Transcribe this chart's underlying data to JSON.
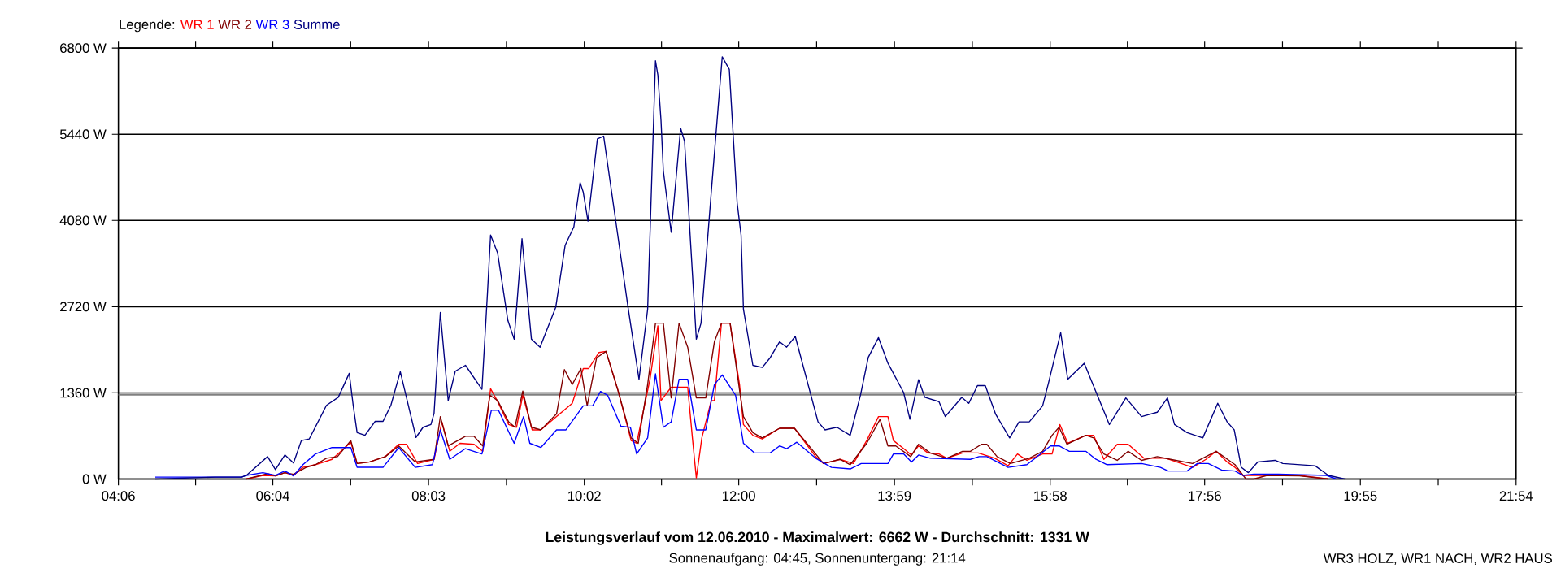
{
  "chart_data": {
    "type": "line",
    "title": "Leistungsverlauf vom 12.06.2010 - Maximalwert: 6662 W - Durchschnitt: 1331 W",
    "subtitle": "Sonnenaufgang: 04:45, Sonnenuntergang: 21:14",
    "legend_title": "Legende:",
    "legend": "top left",
    "annotations": [
      "WR3 HOLZ, WR1 NACH, WR2 HAUS"
    ],
    "xlim": [
      4.1,
      21.9
    ],
    "xticks": [
      {
        "value": 4.1,
        "label": "04:06"
      },
      {
        "value": 5.0833,
        "label": null
      },
      {
        "value": 6.0667,
        "label": "06:04"
      },
      {
        "value": 7.0583,
        "label": null
      },
      {
        "value": 8.05,
        "label": "08:03"
      },
      {
        "value": 9.0417,
        "label": null
      },
      {
        "value": 10.0333,
        "label": "10:02"
      },
      {
        "value": 11.0167,
        "label": null
      },
      {
        "value": 12.0,
        "label": "12:00"
      },
      {
        "value": 12.9917,
        "label": null
      },
      {
        "value": 13.9833,
        "label": "13:59"
      },
      {
        "value": 14.975,
        "label": null
      },
      {
        "value": 15.9667,
        "label": "15:58"
      },
      {
        "value": 16.95,
        "label": null
      },
      {
        "value": 17.9333,
        "label": "17:56"
      },
      {
        "value": 18.925,
        "label": null
      },
      {
        "value": 19.9167,
        "label": "19:55"
      },
      {
        "value": 20.9083,
        "label": null
      },
      {
        "value": 21.9,
        "label": "21:54"
      }
    ],
    "ylim": [
      0,
      6800
    ],
    "yticks": [
      {
        "value": 0,
        "label": "0 W"
      },
      {
        "value": 1360,
        "label": "1360 W"
      },
      {
        "value": 2720,
        "label": "2720 W"
      },
      {
        "value": 4080,
        "label": "4080 W"
      },
      {
        "value": 5440,
        "label": "5440 W"
      },
      {
        "value": 6800,
        "label": "6800 W"
      }
    ],
    "grid": "y",
    "marker": "none",
    "line_style": "solid",
    "ref_lines": [
      {
        "axis": "y",
        "value": 1331,
        "color": "#808080"
      }
    ],
    "series": [
      {
        "name": "WR 1",
        "color": "#ff0000",
        "x": [
          5.73,
          5.94,
          6.1,
          6.22,
          6.33,
          6.45,
          6.61,
          6.82,
          7.06,
          7.14,
          7.3,
          7.5,
          7.67,
          7.77,
          7.91,
          8.12,
          8.22,
          8.32,
          8.45,
          8.63,
          8.74,
          8.84,
          8.93,
          9.07,
          9.17,
          9.25,
          9.37,
          9.48,
          9.68,
          9.88,
          10.02,
          10.09,
          10.22,
          10.31,
          10.46,
          10.63,
          10.7,
          10.87,
          10.97,
          11.01,
          11.14,
          11.35,
          11.41,
          11.46,
          11.53,
          11.65,
          11.69,
          11.78,
          11.89,
          12.01,
          12.06,
          12.18,
          12.3,
          12.52,
          12.71,
          12.98,
          13.08,
          13.29,
          13.46,
          13.63,
          13.78,
          13.9,
          13.97,
          14.1,
          14.2,
          14.29,
          14.41,
          14.55,
          14.65,
          14.85,
          15.05,
          15.26,
          15.43,
          15.55,
          15.67,
          15.87,
          15.99,
          16.09,
          16.19,
          16.42,
          16.52,
          16.65,
          16.82,
          16.96,
          17.16,
          17.44,
          17.78,
          17.95,
          18.08,
          18.22,
          18.32,
          18.42,
          19.14,
          19.51
        ],
        "values": [
          0,
          58,
          50,
          101,
          58,
          185,
          227,
          311,
          581,
          245,
          270,
          354,
          548,
          548,
          245,
          311,
          902,
          438,
          564,
          548,
          438,
          1424,
          1222,
          860,
          817,
          1323,
          776,
          776,
          986,
          1196,
          1744,
          1744,
          1997,
          2015,
          1408,
          607,
          564,
          1575,
          2419,
          1239,
          1449,
          1449,
          649,
          18,
          649,
          1239,
          1239,
          2460,
          2460,
          1492,
          860,
          690,
          632,
          801,
          801,
          354,
          245,
          311,
          245,
          607,
          986,
          986,
          607,
          480,
          379,
          523,
          412,
          396,
          329,
          412,
          412,
          329,
          210,
          396,
          295,
          396,
          396,
          860,
          564,
          690,
          690,
          311,
          548,
          548,
          329,
          329,
          185,
          311,
          438,
          270,
          185,
          58,
          58,
          0
        ]
      },
      {
        "name": "WR 2",
        "color": "#800000",
        "x": [
          5.73,
          6.0,
          6.1,
          6.22,
          6.33,
          6.49,
          6.61,
          6.75,
          6.89,
          7.06,
          7.14,
          7.3,
          7.5,
          7.67,
          7.88,
          8.12,
          8.2,
          8.3,
          8.52,
          8.63,
          8.74,
          8.83,
          8.93,
          9.07,
          9.15,
          9.25,
          9.36,
          9.48,
          9.68,
          9.78,
          9.88,
          9.99,
          10.07,
          10.19,
          10.31,
          10.46,
          10.63,
          10.72,
          10.84,
          10.94,
          11.04,
          11.14,
          11.24,
          11.35,
          11.46,
          11.58,
          11.69,
          11.78,
          11.89,
          12.01,
          12.06,
          12.18,
          12.3,
          12.52,
          12.71,
          12.98,
          13.08,
          13.29,
          13.42,
          13.63,
          13.8,
          13.9,
          14.0,
          14.19,
          14.29,
          14.44,
          14.65,
          14.85,
          14.95,
          15.09,
          15.16,
          15.29,
          15.46,
          15.7,
          15.87,
          15.99,
          16.08,
          16.18,
          16.42,
          16.52,
          16.65,
          16.82,
          16.96,
          17.13,
          17.33,
          17.5,
          17.78,
          18.08,
          18.32,
          18.46,
          18.56,
          18.73,
          19.14,
          19.51
        ],
        "values": [
          0,
          84,
          50,
          101,
          76,
          185,
          227,
          329,
          354,
          607,
          245,
          270,
          354,
          523,
          270,
          311,
          986,
          523,
          674,
          674,
          523,
          1323,
          1239,
          902,
          817,
          1390,
          817,
          776,
          1028,
          1727,
          1492,
          1744,
          1155,
          1914,
          2015,
          1408,
          649,
          564,
          1492,
          2460,
          2460,
          1281,
          2460,
          2081,
          1281,
          1281,
          2166,
          2460,
          2460,
          1408,
          986,
          733,
          649,
          801,
          801,
          396,
          245,
          311,
          227,
          564,
          943,
          523,
          523,
          354,
          548,
          412,
          329,
          438,
          438,
          548,
          548,
          354,
          245,
          329,
          438,
          690,
          817,
          548,
          690,
          649,
          396,
          295,
          438,
          295,
          354,
          311,
          245,
          438,
          227,
          0,
          0,
          58,
          50,
          0
        ]
      },
      {
        "name": "WR 3",
        "color": "#0000ff",
        "x": [
          4.57,
          5.67,
          5.73,
          5.94,
          6.1,
          6.22,
          6.33,
          6.45,
          6.61,
          6.82,
          7.06,
          7.14,
          7.47,
          7.67,
          7.88,
          8.1,
          8.2,
          8.32,
          8.52,
          8.73,
          8.85,
          8.94,
          9.14,
          9.26,
          9.34,
          9.48,
          9.68,
          9.8,
          10.02,
          10.14,
          10.24,
          10.33,
          10.5,
          10.62,
          10.7,
          10.84,
          10.94,
          11.04,
          11.14,
          11.24,
          11.35,
          11.46,
          11.58,
          11.69,
          11.79,
          11.96,
          12.06,
          12.2,
          12.4,
          12.52,
          12.61,
          12.74,
          12.98,
          13.18,
          13.42,
          13.56,
          13.9,
          13.97,
          14.1,
          14.2,
          14.29,
          14.44,
          14.95,
          15.06,
          15.16,
          15.43,
          15.67,
          15.97,
          16.08,
          16.21,
          16.42,
          16.55,
          16.69,
          17.13,
          17.37,
          17.47,
          17.71,
          17.84,
          17.98,
          18.15,
          18.32,
          18.42,
          18.56,
          18.87,
          19.48,
          19.61
        ],
        "values": [
          30,
          30,
          58,
          101,
          58,
          126,
          50,
          227,
          396,
          497,
          497,
          185,
          185,
          497,
          185,
          227,
          776,
          311,
          480,
          396,
          1087,
          1087,
          564,
          986,
          564,
          497,
          776,
          776,
          1155,
          1155,
          1382,
          1323,
          834,
          817,
          396,
          649,
          1660,
          817,
          902,
          1575,
          1575,
          776,
          776,
          1492,
          1643,
          1323,
          564,
          412,
          412,
          523,
          480,
          581,
          329,
          185,
          160,
          245,
          245,
          396,
          396,
          270,
          379,
          329,
          311,
          354,
          354,
          185,
          227,
          523,
          523,
          438,
          438,
          311,
          227,
          245,
          185,
          126,
          126,
          245,
          245,
          143,
          126,
          58,
          76,
          76,
          58,
          0
        ]
      },
      {
        "name": "Summe",
        "color": "#000080",
        "x": [
          4.57,
          5.33,
          5.67,
          5.73,
          6.0,
          6.1,
          6.22,
          6.33,
          6.43,
          6.53,
          6.75,
          6.9,
          7.04,
          7.09,
          7.14,
          7.24,
          7.37,
          7.47,
          7.57,
          7.69,
          7.89,
          7.98,
          8.08,
          8.12,
          8.2,
          8.3,
          8.39,
          8.52,
          8.73,
          8.8,
          8.84,
          8.93,
          9.06,
          9.14,
          9.24,
          9.36,
          9.47,
          9.67,
          9.79,
          9.9,
          9.98,
          10.02,
          10.08,
          10.2,
          10.28,
          10.43,
          10.59,
          10.73,
          10.84,
          10.94,
          10.97,
          11.01,
          11.04,
          11.14,
          11.26,
          11.31,
          11.46,
          11.52,
          11.65,
          11.79,
          11.88,
          11.98,
          12.03,
          12.06,
          12.18,
          12.3,
          12.4,
          12.52,
          12.61,
          12.72,
          13.01,
          13.1,
          13.25,
          13.42,
          13.55,
          13.65,
          13.78,
          13.9,
          14.1,
          14.18,
          14.29,
          14.37,
          14.55,
          14.63,
          14.84,
          14.93,
          15.04,
          15.14,
          15.27,
          15.45,
          15.57,
          15.7,
          15.87,
          15.94,
          16.1,
          16.19,
          16.4,
          16.72,
          16.93,
          17.13,
          17.33,
          17.46,
          17.55,
          17.71,
          17.91,
          18.1,
          18.22,
          18.31,
          18.4,
          18.49,
          18.61,
          18.83,
          18.93,
          19.34,
          19.51,
          19.72
        ],
        "values": [
          0,
          30,
          30,
          58,
          354,
          150,
          380,
          253,
          607,
          632,
          1163,
          1290,
          1668,
          1163,
          733,
          690,
          910,
          910,
          1163,
          1694,
          657,
          817,
          860,
          1036,
          2629,
          1239,
          1702,
          1795,
          1416,
          2932,
          3850,
          3564,
          2503,
          2207,
          3792,
          2207,
          2081,
          2713,
          3690,
          3977,
          4677,
          4525,
          4070,
          5367,
          5410,
          4103,
          2713,
          1575,
          2680,
          6600,
          6378,
          5663,
          4862,
          3893,
          5536,
          5327,
          2207,
          2460,
          4525,
          6662,
          6464,
          4356,
          3850,
          2680,
          1795,
          1762,
          1914,
          2166,
          2081,
          2250,
          902,
          776,
          817,
          690,
          1322,
          1921,
          2232,
          1828,
          1365,
          943,
          1567,
          1289,
          1221,
          986,
          1289,
          1196,
          1475,
          1475,
          1028,
          649,
          902,
          902,
          1155,
          1492,
          2309,
          1575,
          1828,
          860,
          1281,
          986,
          1054,
          1281,
          860,
          733,
          649,
          1196,
          902,
          776,
          185,
          101,
          270,
          295,
          245,
          210,
          58,
          0
        ]
      }
    ]
  }
}
